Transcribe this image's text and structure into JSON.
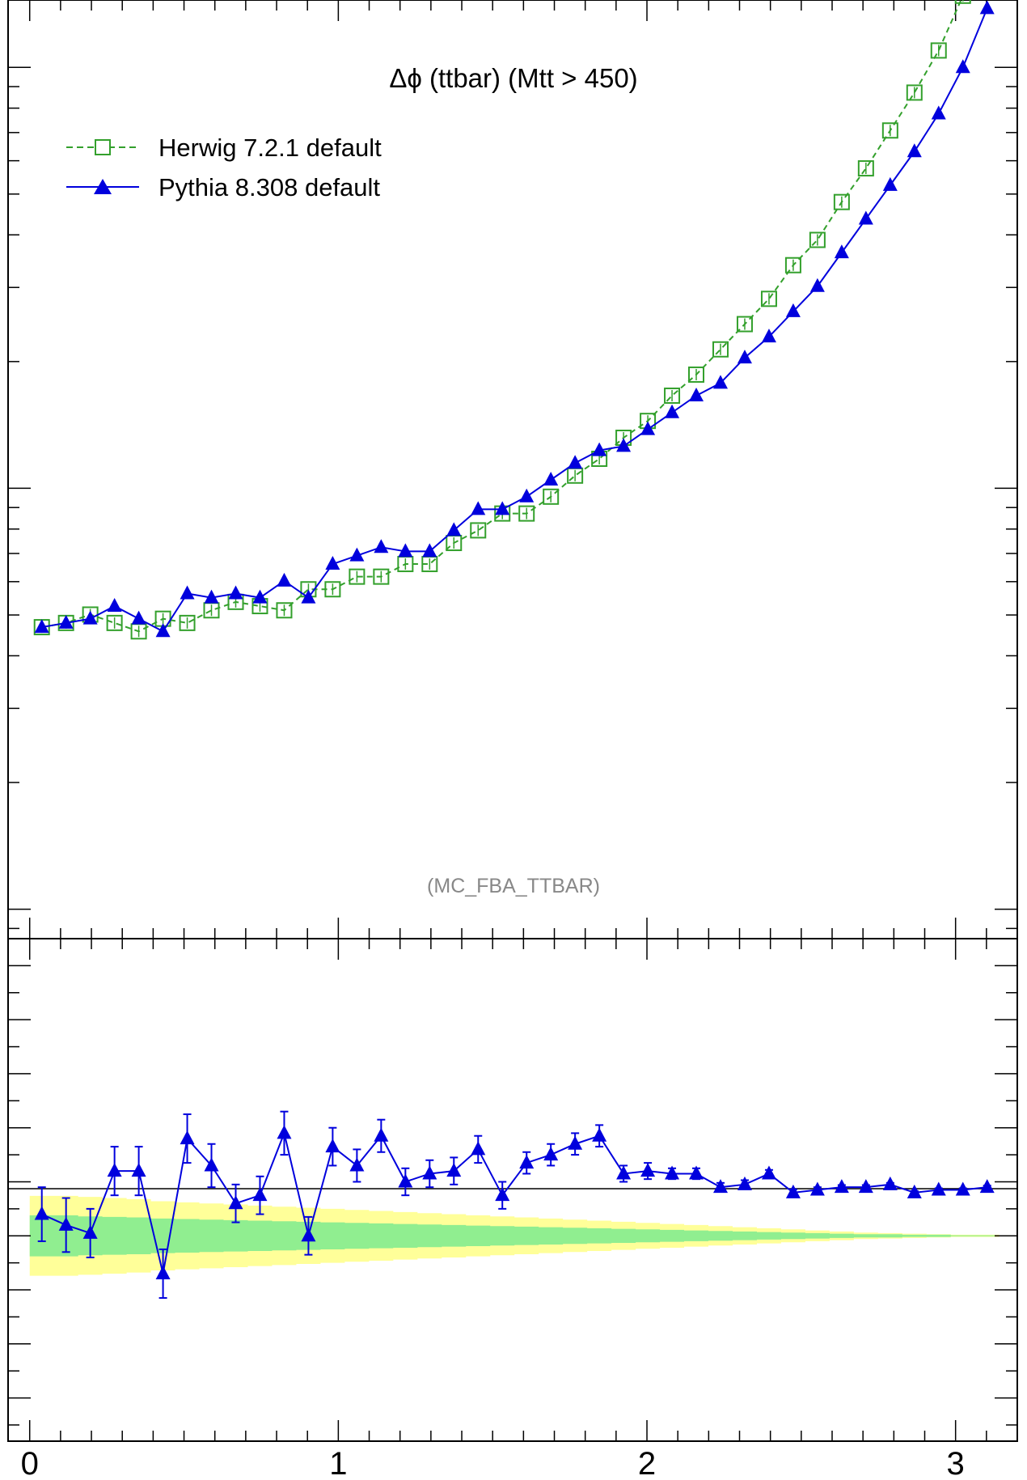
{
  "page": {
    "title_cut": ""
  },
  "chart_data": [
    {
      "type": "line",
      "title": "Δϕ (ttbar) (Mtt > 450)",
      "watermark": "(MC_FBA_TTBAR)",
      "yscale": "log",
      "ylim_log10": [
        -1.07,
        1.16
      ],
      "xlim": [
        -0.07,
        3.2
      ],
      "grid": false,
      "legend": {
        "placement": "top-left",
        "entries": [
          "Herwig 7.2.1 default",
          "Pythia 8.308 default"
        ]
      },
      "x": [
        0.0393,
        0.1178,
        0.1963,
        0.2749,
        0.3534,
        0.432,
        0.5105,
        0.589,
        0.6676,
        0.7461,
        0.8247,
        0.9032,
        0.9817,
        1.0603,
        1.1388,
        1.2174,
        1.2959,
        1.3744,
        1.453,
        1.5315,
        1.6101,
        1.6886,
        1.7671,
        1.8457,
        1.9242,
        2.0028,
        2.0813,
        2.1598,
        2.2384,
        2.3169,
        2.3955,
        2.474,
        2.5525,
        2.6311,
        2.7096,
        2.7882,
        2.8667,
        2.9452,
        3.0238,
        3.1023
      ],
      "series": [
        {
          "name": "Herwig 7.2.1 default",
          "color": "#33a02c",
          "marker": "open-square",
          "line": "dashed",
          "log10_values": [
            -0.33,
            -0.32,
            -0.3,
            -0.32,
            -0.34,
            -0.31,
            -0.32,
            -0.29,
            -0.27,
            -0.28,
            -0.29,
            -0.24,
            -0.24,
            -0.21,
            -0.21,
            -0.18,
            -0.18,
            -0.13,
            -0.1,
            -0.06,
            -0.06,
            -0.02,
            0.03,
            0.07,
            0.12,
            0.16,
            0.22,
            0.27,
            0.33,
            0.39,
            0.45,
            0.53,
            0.59,
            0.68,
            0.76,
            0.85,
            0.94,
            1.04,
            1.17,
            1.32
          ]
        },
        {
          "name": "Pythia 8.308 default",
          "color": "#0000dd",
          "marker": "filled-triangle",
          "line": "solid",
          "log10_values": [
            -0.33,
            -0.32,
            -0.31,
            -0.28,
            -0.31,
            -0.34,
            -0.25,
            -0.26,
            -0.25,
            -0.26,
            -0.22,
            -0.26,
            -0.18,
            -0.16,
            -0.14,
            -0.15,
            -0.15,
            -0.1,
            -0.05,
            -0.05,
            -0.02,
            0.02,
            0.06,
            0.09,
            0.1,
            0.14,
            0.18,
            0.22,
            0.25,
            0.31,
            0.36,
            0.42,
            0.48,
            0.56,
            0.64,
            0.72,
            0.8,
            0.89,
            1.0,
            1.14
          ]
        }
      ]
    },
    {
      "type": "line",
      "role": "ratio",
      "xlim": [
        -0.07,
        3.2
      ],
      "ylim": [
        0.62,
        1.55
      ],
      "reference": 1.0,
      "x_tick_labels": [
        "0",
        "1",
        "2",
        "3"
      ],
      "band_colors": {
        "inner": "#90ee90",
        "outer": "#ffff99"
      },
      "band_inner_halfwidth": [
        0.038,
        0.038,
        0.036,
        0.035,
        0.034,
        0.032,
        0.031,
        0.03,
        0.029,
        0.028,
        0.027,
        0.026,
        0.025,
        0.024,
        0.023,
        0.022,
        0.021,
        0.02,
        0.019,
        0.018,
        0.017,
        0.016,
        0.015,
        0.014,
        0.013,
        0.012,
        0.011,
        0.01,
        0.009,
        0.008,
        0.007,
        0.006,
        0.005,
        0.004,
        0.003,
        0.003,
        0.002,
        0.002,
        0.001,
        0.001
      ],
      "band_outer_halfwidth": [
        0.074,
        0.074,
        0.072,
        0.07,
        0.068,
        0.064,
        0.062,
        0.06,
        0.058,
        0.056,
        0.054,
        0.052,
        0.05,
        0.048,
        0.046,
        0.044,
        0.042,
        0.04,
        0.038,
        0.036,
        0.034,
        0.032,
        0.03,
        0.028,
        0.026,
        0.024,
        0.022,
        0.02,
        0.018,
        0.016,
        0.014,
        0.012,
        0.01,
        0.008,
        0.006,
        0.005,
        0.004,
        0.003,
        0.002,
        0.002
      ],
      "series": [
        {
          "name": "Pythia 8.308 default",
          "color": "#0000dd",
          "values": [
            1.04,
            1.02,
            1.005,
            1.12,
            1.12,
            0.93,
            1.18,
            1.13,
            1.06,
            1.075,
            1.19,
            1.0,
            1.165,
            1.13,
            1.185,
            1.1,
            1.115,
            1.12,
            1.16,
            1.075,
            1.135,
            1.15,
            1.17,
            1.185,
            1.115,
            1.12,
            1.115,
            1.115,
            1.09,
            1.095,
            1.115,
            1.08,
            1.085,
            1.09,
            1.09,
            1.095,
            1.08,
            1.085,
            1.085,
            1.09
          ],
          "errors": [
            0.05,
            0.05,
            0.045,
            0.045,
            0.045,
            0.045,
            0.045,
            0.04,
            0.035,
            0.035,
            0.04,
            0.035,
            0.035,
            0.03,
            0.03,
            0.025,
            0.025,
            0.025,
            0.025,
            0.025,
            0.02,
            0.02,
            0.02,
            0.02,
            0.015,
            0.015,
            0.01,
            0.01,
            0.008,
            0.008,
            0.007,
            0.006,
            0.005,
            0.004,
            0.004,
            0.003,
            0.003,
            0.003,
            0.003,
            0.003
          ]
        }
      ]
    }
  ]
}
